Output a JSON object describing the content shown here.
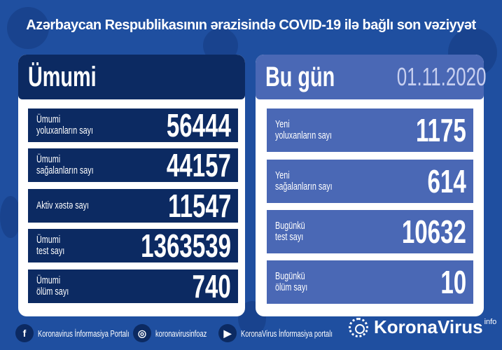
{
  "title": "Azərbaycan Respublikasının ərazisində COVID-19 ilə bağlı son vəziyyət",
  "colors": {
    "background": "#1f4fa0",
    "left_panel": "#0c2a62",
    "right_panel": "#4a68b5",
    "date": "#c8d0f0"
  },
  "left": {
    "title": "Ümumi",
    "rows": [
      {
        "label1": "Ümumi",
        "label2": "yoluxanların sayı",
        "value": "56444"
      },
      {
        "label1": "Ümumi",
        "label2": "sağalanların sayı",
        "value": "44157"
      },
      {
        "label1": "Aktiv xəstə sayı",
        "label2": "",
        "value": "11547"
      },
      {
        "label1": "Ümumi",
        "label2": "test sayı",
        "value": "1363539"
      },
      {
        "label1": "Ümumi",
        "label2": "ölüm sayı",
        "value": "740"
      }
    ]
  },
  "right": {
    "title": "Bu gün",
    "date": "01.11.2020",
    "rows": [
      {
        "label1": "Yeni",
        "label2": "yoluxanların sayı",
        "value": "1175"
      },
      {
        "label1": "Yeni",
        "label2": "sağalanların sayı",
        "value": "614"
      },
      {
        "label1": "Bugünkü",
        "label2": "test sayı",
        "value": "10632"
      },
      {
        "label1": "Bugünkü",
        "label2": "ölüm sayı",
        "value": "10"
      }
    ]
  },
  "footer": {
    "facebook": {
      "icon": "facebook-icon",
      "label": "Koronavirus İnformasiya Portalı"
    },
    "instagram": {
      "icon": "instagram-icon",
      "label": "koronavirusinfoaz"
    },
    "youtube": {
      "icon": "youtube-icon",
      "label": "KoronaVirus İnformasiya portalı"
    },
    "logo": {
      "text": "KoronaVirus",
      "sup": "info"
    }
  }
}
